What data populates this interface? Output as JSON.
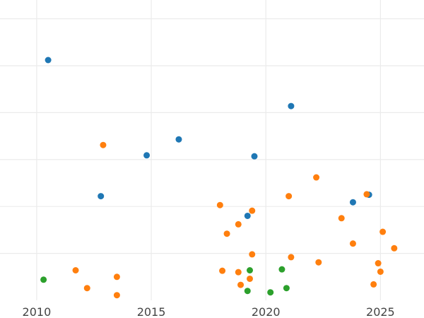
{
  "chart_data": {
    "type": "scatter",
    "title": "",
    "xlabel": "",
    "ylabel": "",
    "xlim": [
      2008.4,
      2026.9
    ],
    "ylim": [
      0,
      64
    ],
    "x_ticks": [
      2010,
      2015,
      2020,
      2025
    ],
    "y_gridlines": [
      10,
      20,
      30,
      40,
      50,
      60
    ],
    "grid": true,
    "legend": "none",
    "colors": [
      "#1f77b4",
      "#ff7f0e",
      "#2ca02c"
    ],
    "series": [
      {
        "color": "#1f77b4",
        "points": [
          {
            "x": 2010.5,
            "y": 51.2
          },
          {
            "x": 2012.8,
            "y": 22.2
          },
          {
            "x": 2014.8,
            "y": 30.9
          },
          {
            "x": 2016.2,
            "y": 34.3
          },
          {
            "x": 2019.2,
            "y": 18.0
          },
          {
            "x": 2019.5,
            "y": 30.7
          },
          {
            "x": 2021.1,
            "y": 41.4
          },
          {
            "x": 2023.8,
            "y": 20.9
          },
          {
            "x": 2024.5,
            "y": 22.5
          }
        ]
      },
      {
        "color": "#ff7f0e",
        "points": [
          {
            "x": 2011.7,
            "y": 6.4
          },
          {
            "x": 2012.2,
            "y": 2.6
          },
          {
            "x": 2012.9,
            "y": 33.1
          },
          {
            "x": 2013.5,
            "y": 5.0
          },
          {
            "x": 2013.5,
            "y": 1.1
          },
          {
            "x": 2018.0,
            "y": 20.3
          },
          {
            "x": 2018.1,
            "y": 6.3
          },
          {
            "x": 2018.3,
            "y": 14.2
          },
          {
            "x": 2018.8,
            "y": 16.2
          },
          {
            "x": 2018.8,
            "y": 6.0
          },
          {
            "x": 2018.9,
            "y": 3.3
          },
          {
            "x": 2019.3,
            "y": 4.6
          },
          {
            "x": 2019.4,
            "y": 19.1
          },
          {
            "x": 2019.4,
            "y": 9.8
          },
          {
            "x": 2021.0,
            "y": 22.2
          },
          {
            "x": 2021.1,
            "y": 9.2
          },
          {
            "x": 2022.2,
            "y": 26.2
          },
          {
            "x": 2022.3,
            "y": 8.1
          },
          {
            "x": 2023.3,
            "y": 17.5
          },
          {
            "x": 2023.8,
            "y": 12.1
          },
          {
            "x": 2024.4,
            "y": 22.6
          },
          {
            "x": 2024.7,
            "y": 3.4
          },
          {
            "x": 2024.9,
            "y": 7.9
          },
          {
            "x": 2025.0,
            "y": 6.1
          },
          {
            "x": 2025.1,
            "y": 14.6
          },
          {
            "x": 2025.6,
            "y": 11.1
          }
        ]
      },
      {
        "color": "#2ca02c",
        "points": [
          {
            "x": 2010.3,
            "y": 4.4
          },
          {
            "x": 2019.2,
            "y": 2.0
          },
          {
            "x": 2019.3,
            "y": 6.4
          },
          {
            "x": 2020.2,
            "y": 1.7
          },
          {
            "x": 2020.7,
            "y": 6.6
          },
          {
            "x": 2020.9,
            "y": 2.6
          }
        ]
      }
    ]
  }
}
